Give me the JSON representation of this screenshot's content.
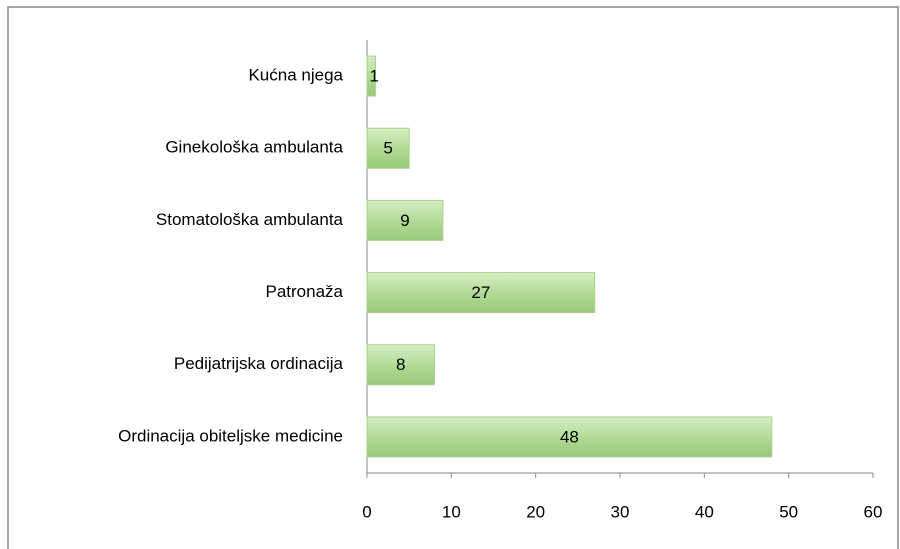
{
  "chart_data": {
    "type": "bar",
    "orientation": "horizontal",
    "categories": [
      "Kućna njega",
      "Ginekološka ambulanta",
      "Stomatološka ambulanta",
      "Patronaža",
      "Pedijatrijska ordinacija",
      "Ordinacija obiteljske medicine"
    ],
    "values": [
      1,
      5,
      9,
      27,
      8,
      48
    ],
    "color": "#a8d48a",
    "xlim": [
      0,
      60
    ],
    "xticks": [
      0,
      10,
      20,
      30,
      40,
      50,
      60
    ],
    "grid": false
  }
}
